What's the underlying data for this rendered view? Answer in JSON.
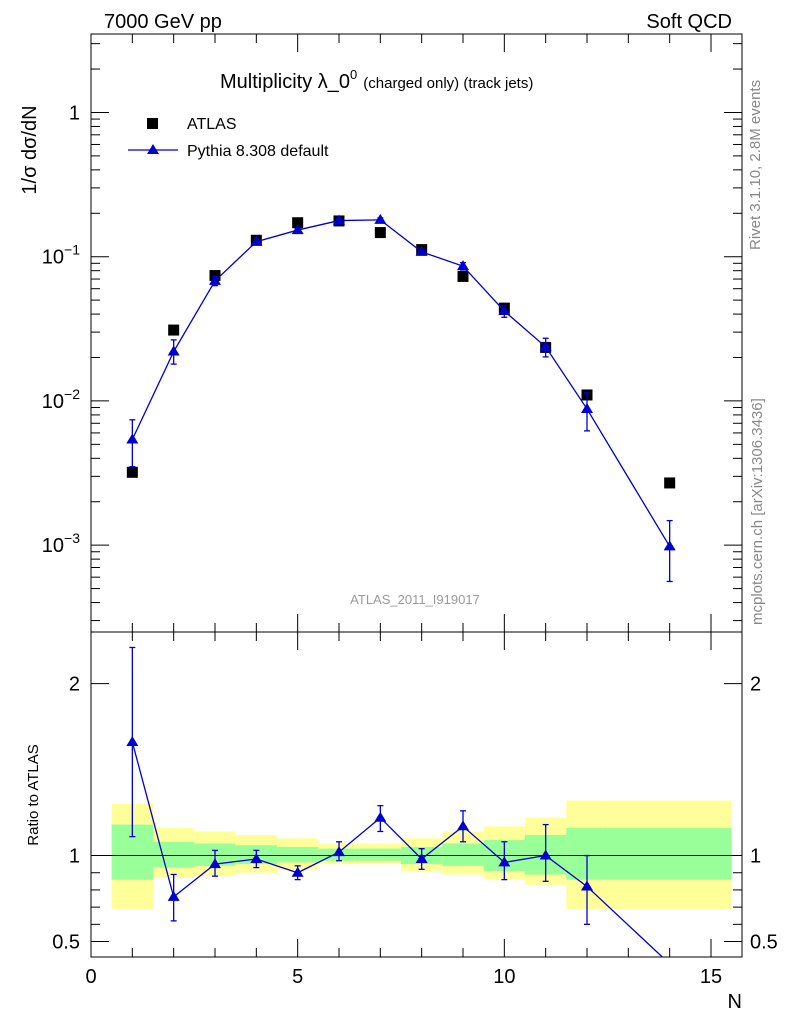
{
  "header": {
    "left": "7000 GeV pp",
    "right": "Soft QCD"
  },
  "title": {
    "main": "Multiplicity λ_0",
    "superscript": "0",
    "suffix": "(charged only) (track jets)"
  },
  "side_labels": {
    "rivet": "Rivet 3.1.10,  2.8M events",
    "mcplots": "mcplots.cern.ch [arXiv:1306.3436]"
  },
  "analysis_id": "ATLAS_2011_I919017",
  "legend": {
    "data_label": "ATLAS",
    "mc_label": "Pythia 8.308 default"
  },
  "colors": {
    "mc": "#0000cc",
    "band_inner": "#99ff99",
    "band_outer": "#ffff99",
    "data": "#000000"
  },
  "chart_data": [
    {
      "type": "scatter",
      "panel": "main",
      "ylabel": "1/σ dσ/dN",
      "yscale": "log",
      "ylim": [
        0.00025,
        3.5
      ],
      "xlim": [
        0,
        15.75
      ],
      "ytick_labels": [
        "10",
        "10",
        "10",
        "1"
      ],
      "ytick_exponents": [
        "−3",
        "−2",
        "−1",
        ""
      ],
      "series": [
        {
          "name": "ATLAS",
          "x": [
            1,
            2,
            3,
            4,
            5,
            6,
            7,
            8,
            9,
            10,
            11,
            12,
            14
          ],
          "y": [
            0.0032,
            0.031,
            0.074,
            0.13,
            0.172,
            0.177,
            0.147,
            0.112,
            0.073,
            0.044,
            0.0235,
            0.011,
            0.0027
          ]
        },
        {
          "name": "Pythia 8.308 default",
          "x": [
            1,
            2,
            3,
            4,
            5,
            6,
            7,
            8,
            9,
            10,
            11,
            12,
            14
          ],
          "y": [
            0.0054,
            0.022,
            0.068,
            0.127,
            0.153,
            0.178,
            0.18,
            0.108,
            0.086,
            0.042,
            0.0237,
            0.0088,
            0.00098
          ],
          "yerr_low": [
            0.0019,
            0.004,
            0.005,
            0.005,
            0.005,
            0.006,
            0.006,
            0.005,
            0.005,
            0.004,
            0.0035,
            0.0026,
            0.00042
          ],
          "yerr_high": [
            0.002,
            0.0045,
            0.005,
            0.005,
            0.005,
            0.006,
            0.006,
            0.005,
            0.005,
            0.004,
            0.0035,
            0.0026,
            0.0005
          ]
        }
      ]
    },
    {
      "type": "line",
      "panel": "ratio",
      "ylabel": "Ratio to ATLAS",
      "xlabel": "N",
      "ylim": [
        0.41,
        2.3
      ],
      "xlim": [
        0,
        15.75
      ],
      "ytick_labels": [
        "0.5",
        "1",
        "2"
      ],
      "xtick_labels": [
        "0",
        "5",
        "10",
        "15"
      ],
      "bands": {
        "edges": [
          0.5,
          1.5,
          2.5,
          3.5,
          4.5,
          5.5,
          6.5,
          7.5,
          8.5,
          9.5,
          10.5,
          11.5,
          12.5,
          15.5
        ],
        "inner_low": [
          0.86,
          0.93,
          0.94,
          0.95,
          0.96,
          0.97,
          0.97,
          0.95,
          0.94,
          0.91,
          0.89,
          0.86,
          0.86
        ],
        "inner_high": [
          1.18,
          1.08,
          1.07,
          1.06,
          1.05,
          1.04,
          1.04,
          1.05,
          1.07,
          1.09,
          1.12,
          1.16,
          1.16
        ],
        "outer_low": [
          0.69,
          0.87,
          0.88,
          0.9,
          0.92,
          0.95,
          0.95,
          0.91,
          0.89,
          0.86,
          0.83,
          0.69,
          0.69
        ],
        "outer_high": [
          1.3,
          1.16,
          1.14,
          1.12,
          1.1,
          1.07,
          1.07,
          1.1,
          1.14,
          1.17,
          1.22,
          1.32,
          1.32
        ]
      },
      "series": [
        {
          "name": "Pythia 8.308 default",
          "x": [
            1,
            2,
            3,
            4,
            5,
            6,
            7,
            8,
            9,
            10,
            11,
            12,
            14
          ],
          "y": [
            1.66,
            0.76,
            0.95,
            0.98,
            0.9,
            1.02,
            1.22,
            0.98,
            1.17,
            0.96,
            1.0,
            0.82,
            0.37
          ],
          "yerr_low": [
            0.55,
            0.14,
            0.07,
            0.05,
            0.04,
            0.05,
            0.08,
            0.06,
            0.09,
            0.1,
            0.15,
            0.22,
            0.0
          ],
          "yerr_high": [
            0.55,
            0.13,
            0.08,
            0.05,
            0.04,
            0.06,
            0.07,
            0.06,
            0.09,
            0.12,
            0.18,
            0.18,
            0.0
          ]
        }
      ]
    }
  ]
}
